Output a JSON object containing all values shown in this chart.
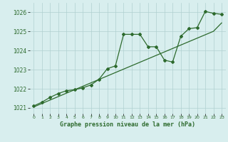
{
  "title": "Graphe pression niveau de la mer (hPa)",
  "x_values": [
    0,
    1,
    2,
    3,
    4,
    5,
    6,
    7,
    8,
    9,
    10,
    11,
    12,
    13,
    14,
    15,
    16,
    17,
    18,
    19,
    20,
    21,
    22,
    23
  ],
  "y_line1": [
    1021.1,
    1021.3,
    1021.55,
    1021.75,
    1021.9,
    1021.95,
    1022.05,
    1022.2,
    1022.5,
    1023.05,
    1023.2,
    1024.85,
    1024.85,
    1024.85,
    1024.2,
    1024.2,
    1023.5,
    1023.4,
    1024.75,
    1025.15,
    1025.2,
    1026.05,
    1025.95,
    1025.9
  ],
  "y_line2": [
    1021.05,
    1021.23,
    1021.41,
    1021.59,
    1021.77,
    1021.95,
    1022.13,
    1022.31,
    1022.49,
    1022.67,
    1022.85,
    1023.03,
    1023.21,
    1023.39,
    1023.57,
    1023.75,
    1023.93,
    1024.11,
    1024.29,
    1024.47,
    1024.65,
    1024.83,
    1025.01,
    1025.45
  ],
  "ylim": [
    1020.7,
    1026.5
  ],
  "yticks": [
    1021,
    1022,
    1023,
    1024,
    1025,
    1026
  ],
  "xticks": [
    0,
    1,
    2,
    3,
    4,
    5,
    6,
    7,
    8,
    9,
    10,
    11,
    12,
    13,
    14,
    15,
    16,
    17,
    18,
    19,
    20,
    21,
    22,
    23
  ],
  "line_color": "#2d6a2d",
  "bg_color": "#d8eeee",
  "grid_color": "#b0d0d0",
  "marker": "D"
}
